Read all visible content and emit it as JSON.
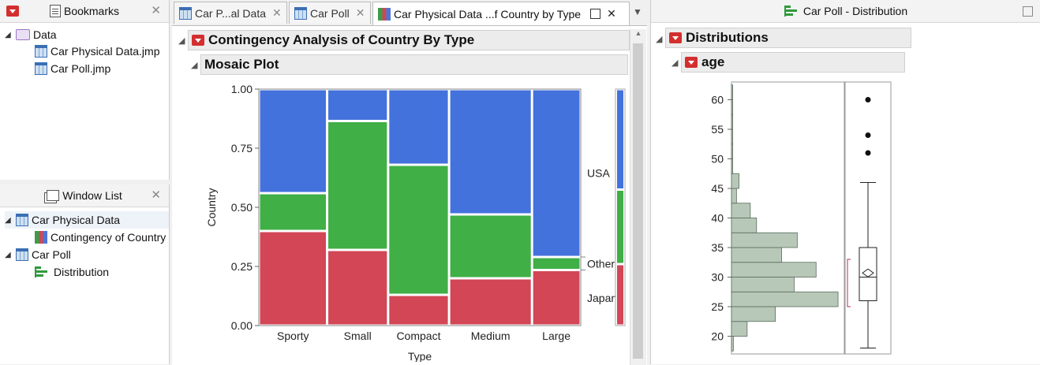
{
  "bookmarks": {
    "title": "Bookmarks",
    "folder": "Data",
    "files": [
      "Car Physical Data.jmp",
      "Car Poll.jmp"
    ]
  },
  "window_list": {
    "title": "Window List",
    "items": [
      {
        "label": "Car Physical Data",
        "children": [
          "Contingency of Country"
        ]
      },
      {
        "label": "Car Poll",
        "children": [
          "Distribution"
        ]
      }
    ]
  },
  "tabs": [
    {
      "label": "Car P...al Data"
    },
    {
      "label": "Car Poll"
    },
    {
      "label": "Car Physical Data ...f Country by Type"
    }
  ],
  "contingency": {
    "title": "Contingency Analysis of Country By Type",
    "subtitle": "Mosaic Plot"
  },
  "right_panel": {
    "title": "Car Poll - Distribution",
    "section": "Distributions",
    "variable": "age"
  },
  "colors": {
    "USA": "#4472dd",
    "Other": "#3faf46",
    "Japan": "#d24656",
    "hist": "#b7c8b8"
  },
  "chart_data": [
    {
      "type": "bar",
      "subtype": "mosaic",
      "xlabel": "Type",
      "ylabel": "Country",
      "ylim": [
        0,
        1
      ],
      "yticks": [
        "0.00",
        "0.25",
        "0.50",
        "0.75",
        "1.00"
      ],
      "categories": [
        "Sporty",
        "Small",
        "Compact",
        "Medium",
        "Large"
      ],
      "widths": [
        0.28,
        0.25,
        0.25,
        0.34,
        0.2
      ],
      "series": [
        {
          "name": "Japan",
          "values": [
            0.4,
            0.32,
            0.13,
            0.2,
            0.235
          ]
        },
        {
          "name": "Other",
          "values": [
            0.16,
            0.545,
            0.55,
            0.27,
            0.055
          ]
        },
        {
          "name": "USA",
          "values": [
            0.44,
            0.135,
            0.32,
            0.53,
            0.71
          ]
        }
      ],
      "marginal": {
        "Japan": 0.26,
        "Other": 0.315,
        "USA": 0.425
      }
    },
    {
      "type": "bar",
      "subtype": "histogram-boxplot",
      "variable": "age",
      "yticks": [
        20,
        25,
        30,
        35,
        40,
        45,
        50,
        55,
        60
      ],
      "ylim": [
        17,
        63
      ],
      "bins": [
        {
          "from": 17.5,
          "to": 20,
          "count": 0.3
        },
        {
          "from": 20,
          "to": 22.5,
          "count": 2.5
        },
        {
          "from": 22.5,
          "to": 25,
          "count": 7
        },
        {
          "from": 25,
          "to": 27.5,
          "count": 17
        },
        {
          "from": 27.5,
          "to": 30,
          "count": 10
        },
        {
          "from": 30,
          "to": 32.5,
          "count": 13.5
        },
        {
          "from": 32.5,
          "to": 35,
          "count": 8
        },
        {
          "from": 35,
          "to": 37.5,
          "count": 10.5
        },
        {
          "from": 37.5,
          "to": 40,
          "count": 4
        },
        {
          "from": 40,
          "to": 42.5,
          "count": 3
        },
        {
          "from": 42.5,
          "to": 45,
          "count": 0.8
        },
        {
          "from": 45,
          "to": 47.5,
          "count": 1.2
        },
        {
          "from": 47.5,
          "to": 50,
          "count": 0.2
        },
        {
          "from": 50,
          "to": 52.5,
          "count": 0.2
        },
        {
          "from": 52.5,
          "to": 55,
          "count": 0.2
        },
        {
          "from": 55,
          "to": 57.5,
          "count": 0.2
        },
        {
          "from": 57.5,
          "to": 60,
          "count": 0.2
        },
        {
          "from": 60,
          "to": 62.5,
          "count": 0.2
        }
      ],
      "box": {
        "min": 18,
        "q1": 26,
        "median": 30,
        "q3": 35,
        "whisker_high": 46,
        "mean": 30.7
      },
      "outliers": [
        51,
        54,
        60
      ],
      "ci_bracket": [
        25,
        33
      ]
    }
  ]
}
